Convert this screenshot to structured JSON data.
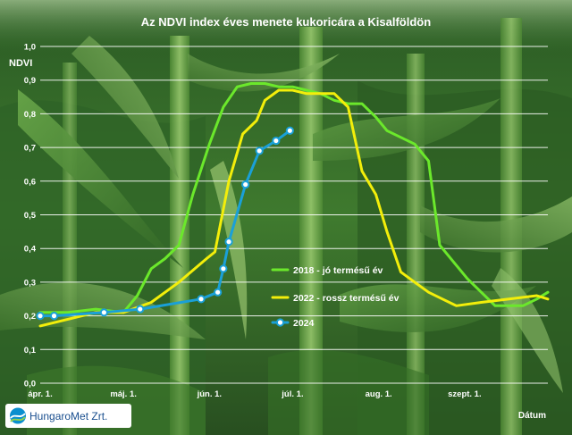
{
  "chart_data": {
    "type": "line",
    "title": "Az NDVI index éves menete kukoricára a Kisalföldön",
    "ylabel": "NDVI",
    "xlabel": "Dátum",
    "ylim": [
      0,
      1
    ],
    "yticks": [
      "0,0",
      "0,1",
      "0,2",
      "0,3",
      "0,4",
      "0,5",
      "0,6",
      "0,7",
      "0,8",
      "0,9",
      "1,0"
    ],
    "xticks": [
      {
        "label": "ápr. 1.",
        "date": "04-01"
      },
      {
        "label": "máj. 1.",
        "date": "05-01"
      },
      {
        "label": "jún. 1.",
        "date": "06-01"
      },
      {
        "label": "júl. 1.",
        "date": "07-01"
      },
      {
        "label": "aug. 1.",
        "date": "08-01"
      },
      {
        "label": "szept. 1.",
        "date": "09-01"
      }
    ],
    "xrange": [
      "04-01",
      "10-01"
    ],
    "grid": true,
    "legend_position": "center-right",
    "series": [
      {
        "name": "2018 - jó termésű év",
        "color": "#6be82b",
        "marker": false,
        "points": [
          [
            "04-01",
            0.21
          ],
          [
            "04-11",
            0.21
          ],
          [
            "04-21",
            0.22
          ],
          [
            "05-01",
            0.21
          ],
          [
            "05-06",
            0.26
          ],
          [
            "05-11",
            0.34
          ],
          [
            "05-16",
            0.37
          ],
          [
            "05-21",
            0.41
          ],
          [
            "05-26",
            0.56
          ],
          [
            "06-01",
            0.71
          ],
          [
            "06-06",
            0.82
          ],
          [
            "06-11",
            0.88
          ],
          [
            "06-16",
            0.89
          ],
          [
            "06-21",
            0.89
          ],
          [
            "06-26",
            0.88
          ],
          [
            "07-01",
            0.88
          ],
          [
            "07-06",
            0.87
          ],
          [
            "07-11",
            0.86
          ],
          [
            "07-16",
            0.84
          ],
          [
            "07-21",
            0.83
          ],
          [
            "07-26",
            0.83
          ],
          [
            "07-31",
            0.79
          ],
          [
            "08-04",
            0.75
          ],
          [
            "08-09",
            0.73
          ],
          [
            "08-14",
            0.71
          ],
          [
            "08-19",
            0.66
          ],
          [
            "08-23",
            0.41
          ],
          [
            "08-28",
            0.36
          ],
          [
            "09-02",
            0.31
          ],
          [
            "09-07",
            0.27
          ],
          [
            "09-12",
            0.23
          ],
          [
            "09-17",
            0.23
          ],
          [
            "09-22",
            0.23
          ],
          [
            "09-27",
            0.25
          ],
          [
            "10-01",
            0.27
          ]
        ]
      },
      {
        "name": "2022 - rossz termésű év",
        "color": "#f3ee0a",
        "marker": false,
        "points": [
          [
            "04-01",
            0.17
          ],
          [
            "04-11",
            0.19
          ],
          [
            "04-21",
            0.21
          ],
          [
            "05-01",
            0.21
          ],
          [
            "05-11",
            0.24
          ],
          [
            "05-21",
            0.3
          ],
          [
            "05-31",
            0.37
          ],
          [
            "06-03",
            0.39
          ],
          [
            "06-08",
            0.6
          ],
          [
            "06-13",
            0.74
          ],
          [
            "06-18",
            0.78
          ],
          [
            "06-21",
            0.84
          ],
          [
            "06-26",
            0.87
          ],
          [
            "07-01",
            0.87
          ],
          [
            "07-06",
            0.86
          ],
          [
            "07-11",
            0.86
          ],
          [
            "07-16",
            0.86
          ],
          [
            "07-21",
            0.82
          ],
          [
            "07-26",
            0.63
          ],
          [
            "07-31",
            0.56
          ],
          [
            "08-04",
            0.45
          ],
          [
            "08-09",
            0.33
          ],
          [
            "08-14",
            0.3
          ],
          [
            "08-19",
            0.27
          ],
          [
            "08-24",
            0.25
          ],
          [
            "08-29",
            0.23
          ],
          [
            "09-07",
            0.24
          ],
          [
            "09-17",
            0.25
          ],
          [
            "09-27",
            0.26
          ],
          [
            "10-01",
            0.25
          ]
        ]
      },
      {
        "name": "2024",
        "color": "#1aa0d8",
        "marker": true,
        "points": [
          [
            "04-01",
            0.2
          ],
          [
            "04-06",
            0.2
          ],
          [
            "04-24",
            0.21
          ],
          [
            "05-07",
            0.22
          ],
          [
            "05-29",
            0.25
          ],
          [
            "06-04",
            0.27
          ],
          [
            "06-06",
            0.34
          ],
          [
            "06-08",
            0.42
          ],
          [
            "06-14",
            0.59
          ],
          [
            "06-19",
            0.69
          ],
          [
            "06-25",
            0.72
          ],
          [
            "06-30",
            0.75
          ]
        ]
      }
    ]
  },
  "logo": {
    "text": "HungaroMet Zrt."
  }
}
